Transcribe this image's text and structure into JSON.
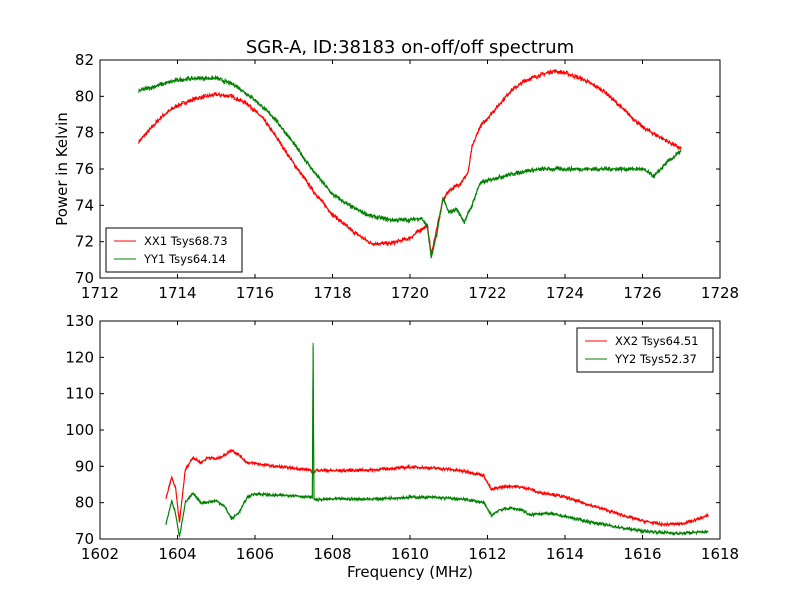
{
  "colors": {
    "red": "#ff0000",
    "green": "#008000"
  },
  "chart_data": [
    {
      "type": "line",
      "title": "SGR-A, ID:38183 on-off/off spectrum",
      "xlabel": "",
      "ylabel": "Power in Kelvin",
      "xlim": [
        1712,
        1728
      ],
      "ylim": [
        70,
        82
      ],
      "xticks": [
        "1712",
        "1714",
        "1716",
        "1718",
        "1720",
        "1722",
        "1724",
        "1726",
        "1728"
      ],
      "yticks": [
        "70",
        "72",
        "74",
        "76",
        "78",
        "80",
        "82"
      ],
      "legend_position": "lower-left",
      "series": [
        {
          "name": "XX1 Tsys68.73",
          "color": "red",
          "x": [
            1713.0,
            1713.3,
            1713.6,
            1714.0,
            1714.5,
            1715.0,
            1715.4,
            1715.8,
            1716.2,
            1716.6,
            1717.0,
            1717.5,
            1718.0,
            1718.5,
            1719.0,
            1719.5,
            1720.0,
            1720.3,
            1720.45,
            1720.55,
            1720.7,
            1720.85,
            1721.0,
            1721.3,
            1721.5,
            1721.6,
            1721.8,
            1722.2,
            1722.6,
            1723.0,
            1723.4,
            1723.7,
            1724.0,
            1724.5,
            1725.0,
            1725.5,
            1726.0,
            1726.5,
            1727.0
          ],
          "y": [
            77.5,
            78.2,
            78.9,
            79.5,
            79.9,
            80.1,
            80.0,
            79.6,
            78.8,
            77.6,
            76.3,
            74.8,
            73.5,
            72.6,
            71.9,
            71.9,
            72.2,
            72.7,
            72.9,
            71.3,
            72.8,
            74.3,
            74.8,
            75.2,
            75.8,
            77.2,
            78.3,
            79.3,
            80.3,
            80.9,
            81.2,
            81.4,
            81.3,
            80.9,
            80.3,
            79.3,
            78.3,
            77.7,
            77.1
          ]
        },
        {
          "name": "YY1 Tsys64.14",
          "color": "green",
          "x": [
            1713.0,
            1713.5,
            1714.0,
            1714.5,
            1715.0,
            1715.5,
            1716.0,
            1716.5,
            1717.0,
            1717.5,
            1718.0,
            1718.5,
            1719.0,
            1719.5,
            1720.0,
            1720.3,
            1720.45,
            1720.55,
            1720.7,
            1720.85,
            1721.0,
            1721.2,
            1721.4,
            1721.6,
            1721.8,
            1722.2,
            1722.6,
            1723.0,
            1723.5,
            1724.0,
            1724.5,
            1725.0,
            1725.5,
            1726.0,
            1726.3,
            1726.6,
            1727.0
          ],
          "y": [
            80.3,
            80.6,
            80.9,
            81.0,
            81.0,
            80.6,
            79.8,
            78.8,
            77.4,
            75.9,
            74.6,
            73.9,
            73.4,
            73.2,
            73.2,
            73.3,
            72.8,
            71.1,
            72.5,
            74.4,
            73.6,
            73.8,
            73.1,
            74.0,
            75.2,
            75.5,
            75.7,
            75.9,
            76.0,
            76.0,
            76.0,
            76.0,
            76.0,
            76.0,
            75.6,
            76.3,
            77.0
          ]
        }
      ]
    },
    {
      "type": "line",
      "title": "",
      "xlabel": "Frequency (MHz)",
      "ylabel": "",
      "xlim": [
        1602,
        1618
      ],
      "ylim": [
        70,
        130
      ],
      "xticks": [
        "1602",
        "1604",
        "1606",
        "1608",
        "1610",
        "1612",
        "1614",
        "1616",
        "1618"
      ],
      "yticks": [
        "70",
        "80",
        "90",
        "100",
        "110",
        "120",
        "130"
      ],
      "legend_position": "top-right",
      "series": [
        {
          "name": "XX2 Tsys64.51",
          "color": "red",
          "x": [
            1603.7,
            1603.85,
            1603.95,
            1604.05,
            1604.2,
            1604.4,
            1604.6,
            1604.8,
            1605.0,
            1605.2,
            1605.4,
            1605.6,
            1605.8,
            1606.0,
            1606.5,
            1607.0,
            1607.4,
            1607.5,
            1607.6,
            1608.0,
            1609.0,
            1610.0,
            1610.5,
            1611.0,
            1611.5,
            1611.9,
            1612.1,
            1612.3,
            1612.6,
            1612.9,
            1613.1,
            1613.3,
            1613.6,
            1614.0,
            1614.5,
            1615.0,
            1615.5,
            1616.0,
            1616.5,
            1617.0,
            1617.3,
            1617.7
          ],
          "y": [
            81.0,
            87.0,
            84.0,
            74.5,
            89.0,
            92.5,
            91.0,
            92.5,
            92.0,
            93.0,
            94.5,
            93.0,
            91.0,
            90.8,
            90.0,
            89.5,
            89.0,
            88.3,
            89.0,
            88.8,
            89.0,
            89.8,
            89.6,
            89.2,
            88.5,
            87.5,
            83.5,
            84.2,
            84.6,
            84.2,
            83.8,
            82.8,
            82.5,
            81.5,
            79.8,
            78.2,
            76.5,
            75.0,
            74.0,
            74.2,
            75.0,
            76.5
          ]
        },
        {
          "name": "YY2 Tsys52.37",
          "color": "green",
          "x": [
            1603.7,
            1603.85,
            1603.95,
            1604.05,
            1604.2,
            1604.4,
            1604.6,
            1604.8,
            1605.0,
            1605.2,
            1605.4,
            1605.6,
            1605.8,
            1606.0,
            1606.5,
            1607.0,
            1607.4,
            1607.48,
            1607.5,
            1607.52,
            1607.6,
            1608.0,
            1609.0,
            1610.0,
            1610.5,
            1611.0,
            1611.5,
            1611.9,
            1612.1,
            1612.3,
            1612.6,
            1612.9,
            1613.1,
            1613.3,
            1613.6,
            1614.0,
            1614.5,
            1615.0,
            1615.5,
            1616.0,
            1616.5,
            1617.0,
            1617.3,
            1617.7
          ],
          "y": [
            74.0,
            80.5,
            77.0,
            70.5,
            80.0,
            82.5,
            80.0,
            80.2,
            80.5,
            79.2,
            75.5,
            77.5,
            81.5,
            82.5,
            82.0,
            82.0,
            81.5,
            81.5,
            124.0,
            81.0,
            80.8,
            81.0,
            81.0,
            81.5,
            81.5,
            81.2,
            80.8,
            80.0,
            76.5,
            78.0,
            78.5,
            78.0,
            76.5,
            77.0,
            77.0,
            76.2,
            75.0,
            74.0,
            73.0,
            72.2,
            71.8,
            71.5,
            71.8,
            72.0
          ]
        }
      ]
    }
  ]
}
